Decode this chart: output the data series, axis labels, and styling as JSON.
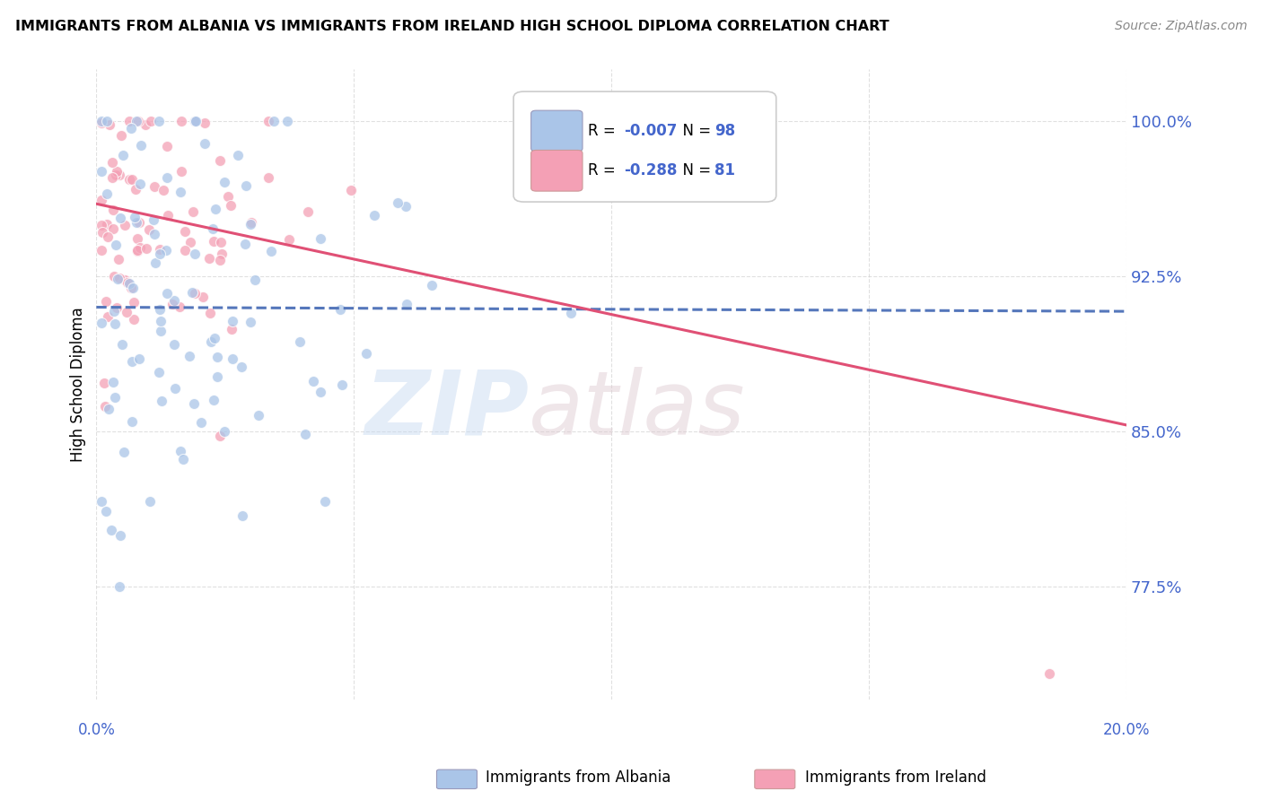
{
  "title": "IMMIGRANTS FROM ALBANIA VS IMMIGRANTS FROM IRELAND HIGH SCHOOL DIPLOMA CORRELATION CHART",
  "source": "Source: ZipAtlas.com",
  "ylabel": "High School Diploma",
  "ytick_vals": [
    0.775,
    0.85,
    0.925,
    1.0
  ],
  "ytick_labels": [
    "77.5%",
    "85.0%",
    "92.5%",
    "100.0%"
  ],
  "xlim": [
    0.0,
    0.2
  ],
  "ylim": [
    0.72,
    1.025
  ],
  "legend_r1": "R = -0.007",
  "legend_n1": "N = 98",
  "legend_r2": "R = -0.288",
  "legend_n2": "N = 81",
  "legend_label1": "Immigrants from Albania",
  "legend_label2": "Immigrants from Ireland",
  "color_albania": "#aac5e8",
  "color_ireland": "#f4a0b5",
  "color_trend_albania": "#5577bb",
  "color_trend_ireland": "#e05075",
  "color_text_blue": "#4466cc",
  "background_color": "#ffffff",
  "grid_color": "#cccccc",
  "trend_alb_x0": 0.0,
  "trend_alb_y0": 0.91,
  "trend_alb_x1": 0.2,
  "trend_alb_y1": 0.908,
  "trend_ire_x0": 0.0,
  "trend_ire_y0": 0.96,
  "trend_ire_x1": 0.2,
  "trend_ire_y1": 0.853
}
